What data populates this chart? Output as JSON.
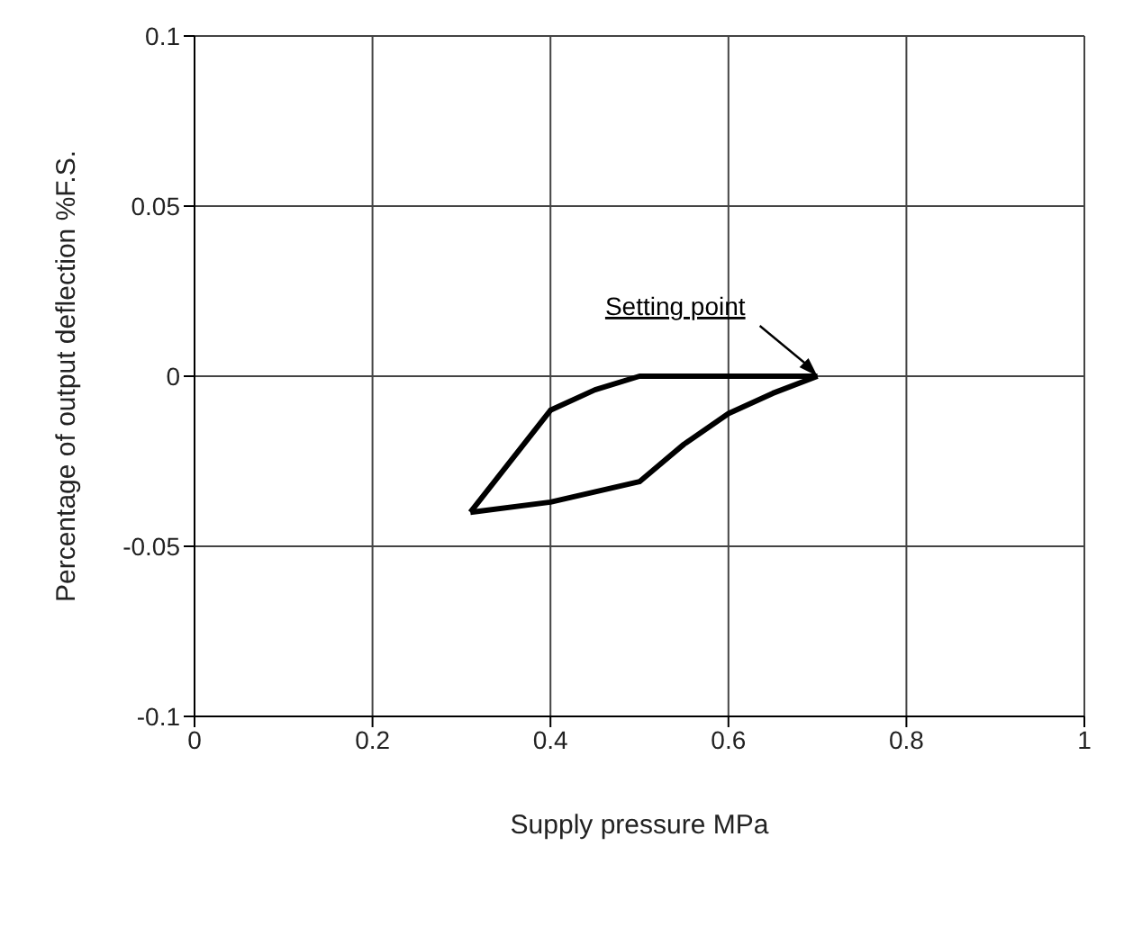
{
  "chart_data": {
    "type": "line",
    "xlabel": "Supply pressure MPa",
    "ylabel": "Percentage of output deflection %F.S.",
    "series": [
      {
        "color": "#000000",
        "x": [
          0.31,
          0.37,
          0.4,
          0.45,
          0.5,
          0.7
        ],
        "values": [
          -0.04,
          -0.02,
          -0.01,
          -0.004,
          0,
          0
        ]
      },
      {
        "color": "#000000",
        "x": [
          0.31,
          0.4,
          0.5,
          0.55,
          0.6,
          0.65,
          0.7
        ],
        "values": [
          -0.04,
          -0.037,
          -0.031,
          -0.02,
          -0.011,
          -0.005,
          0
        ]
      }
    ],
    "xlim": [
      0,
      1
    ],
    "xticks": [
      0,
      0.2,
      0.4,
      0.6,
      0.8,
      1
    ],
    "ylim": [
      -0.1,
      0.1
    ],
    "yticks": [
      -0.1,
      -0.05,
      0,
      0.05,
      0.1
    ],
    "grid": true,
    "marker": "none",
    "line_style": "solid",
    "legend": false,
    "annotations": [
      {
        "text": "Setting point",
        "x": 0.7,
        "y": 0
      }
    ]
  }
}
